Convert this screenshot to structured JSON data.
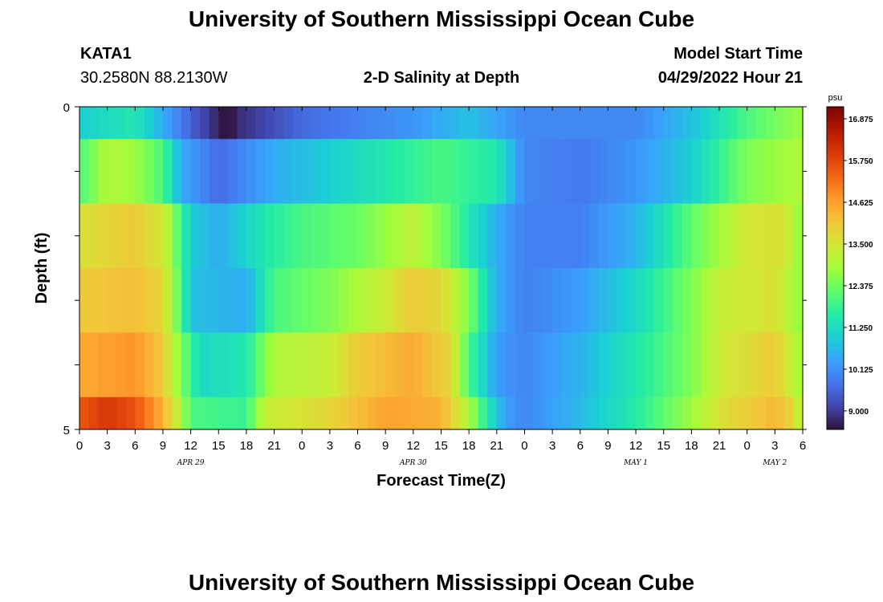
{
  "header": {
    "title": "University of Southern Mississippi Ocean Cube",
    "station": "KATA1",
    "coords": "30.2580N  88.2130W",
    "chart_title": "2-D Salinity at Depth",
    "model_label": "Model Start Time",
    "model_time": "04/29/2022 Hour 21"
  },
  "footer": {
    "title": "University of Southern Mississippi Ocean Cube"
  },
  "chart_data": {
    "type": "heatmap",
    "title": "2-D Salinity at Depth",
    "xlabel": "Forecast Time(Z)",
    "ylabel": "Depth (ft)",
    "x_hours": [
      0,
      3,
      6,
      9,
      12,
      15,
      18,
      21,
      24,
      27,
      30,
      33,
      36,
      39,
      42,
      45,
      48,
      51,
      54,
      57,
      60,
      63,
      66,
      69,
      72,
      75,
      78
    ],
    "x_tick_labels": [
      "0",
      "3",
      "6",
      "9",
      "12",
      "15",
      "18",
      "21",
      "0",
      "3",
      "6",
      "9",
      "12",
      "15",
      "18",
      "21",
      "0",
      "3",
      "6",
      "9",
      "12",
      "15",
      "18",
      "21",
      "0",
      "3",
      "6"
    ],
    "date_labels": [
      {
        "hour": 12,
        "text": "APR 29"
      },
      {
        "hour": 36,
        "text": "APR 30"
      },
      {
        "hour": 60,
        "text": "MAY 1"
      },
      {
        "hour": 75,
        "text": "MAY 2"
      }
    ],
    "y_tick_labels": [
      {
        "depth": 0,
        "text": "0"
      },
      {
        "depth": 5,
        "text": "5"
      }
    ],
    "ylim": [
      0,
      5
    ],
    "xlim": [
      0,
      78
    ],
    "colorbar": {
      "unit": "psu",
      "min": 8.5,
      "max": 17.2,
      "ticks": [
        "16.875",
        "15.750",
        "14.625",
        "13.500",
        "12.375",
        "11.250",
        "10.125",
        "9.000"
      ],
      "colors": [
        "#30123b",
        "#4145ab",
        "#4675ed",
        "#39a2fc",
        "#1bcfd4",
        "#24eca6",
        "#61fc6c",
        "#a4fc3b",
        "#d1e834",
        "#f3c63a",
        "#fe9b2d",
        "#f36315",
        "#d93806",
        "#b11901",
        "#7a0403"
      ]
    },
    "layers": [
      {
        "depth_range": [
          0,
          0.5
        ],
        "knots": [
          [
            0,
            11.0
          ],
          [
            6,
            11.5
          ],
          [
            12,
            9.5
          ],
          [
            15,
            8.7
          ],
          [
            16,
            8.4
          ],
          [
            17,
            8.8
          ],
          [
            24,
            9.6
          ],
          [
            36,
            10.2
          ],
          [
            42,
            10.8
          ],
          [
            48,
            10.0
          ],
          [
            60,
            10.0
          ],
          [
            66,
            10.8
          ],
          [
            72,
            12.0
          ],
          [
            78,
            12.8
          ]
        ]
      },
      {
        "depth_range": [
          0.5,
          1.5
        ],
        "knots": [
          [
            0,
            12.0
          ],
          [
            3,
            13.0
          ],
          [
            6,
            12.8
          ],
          [
            9,
            12.0
          ],
          [
            11,
            10.5
          ],
          [
            15,
            9.6
          ],
          [
            21,
            10.5
          ],
          [
            27,
            11.0
          ],
          [
            33,
            11.5
          ],
          [
            39,
            12.0
          ],
          [
            45,
            11.5
          ],
          [
            48,
            10.0
          ],
          [
            54,
            9.8
          ],
          [
            60,
            10.2
          ],
          [
            66,
            11.0
          ],
          [
            72,
            12.5
          ],
          [
            78,
            13.0
          ]
        ]
      },
      {
        "depth_range": [
          1.5,
          2.5
        ],
        "knots": [
          [
            0,
            13.6
          ],
          [
            6,
            14.0
          ],
          [
            9,
            13.5
          ],
          [
            12,
            11.0
          ],
          [
            15,
            10.5
          ],
          [
            20,
            11.5
          ],
          [
            24,
            12.0
          ],
          [
            30,
            12.3
          ],
          [
            36,
            13.2
          ],
          [
            39,
            12.5
          ],
          [
            42,
            11.5
          ],
          [
            45,
            10.5
          ],
          [
            48,
            9.9
          ],
          [
            54,
            9.9
          ],
          [
            60,
            10.6
          ],
          [
            66,
            12.2
          ],
          [
            72,
            13.5
          ],
          [
            76,
            13.6
          ],
          [
            78,
            12.5
          ]
        ]
      },
      {
        "depth_range": [
          2.5,
          3.5
        ],
        "knots": [
          [
            0,
            14.0
          ],
          [
            6,
            14.2
          ],
          [
            9,
            13.8
          ],
          [
            11,
            12.0
          ],
          [
            12,
            10.8
          ],
          [
            18,
            10.5
          ],
          [
            21,
            12.0
          ],
          [
            27,
            12.5
          ],
          [
            33,
            13.4
          ],
          [
            36,
            14.0
          ],
          [
            39,
            13.8
          ],
          [
            42,
            12.5
          ],
          [
            45,
            10.5
          ],
          [
            48,
            9.9
          ],
          [
            54,
            10.3
          ],
          [
            60,
            11.2
          ],
          [
            66,
            12.5
          ],
          [
            69,
            13.3
          ],
          [
            75,
            13.6
          ],
          [
            78,
            12.6
          ]
        ]
      },
      {
        "depth_range": [
          3.5,
          4.5
        ],
        "knots": [
          [
            0,
            14.5
          ],
          [
            6,
            14.8
          ],
          [
            9,
            14.0
          ],
          [
            11,
            12.5
          ],
          [
            13,
            11.2
          ],
          [
            18,
            11.5
          ],
          [
            21,
            13.0
          ],
          [
            27,
            13.3
          ],
          [
            30,
            14.0
          ],
          [
            36,
            14.5
          ],
          [
            40,
            13.8
          ],
          [
            42,
            12.0
          ],
          [
            45,
            10.3
          ],
          [
            48,
            10.0
          ],
          [
            54,
            10.6
          ],
          [
            60,
            11.5
          ],
          [
            66,
            12.5
          ],
          [
            69,
            13.4
          ],
          [
            75,
            14.0
          ],
          [
            78,
            12.8
          ]
        ]
      },
      {
        "depth_range": [
          4.5,
          5.0
        ],
        "knots": [
          [
            0,
            15.5
          ],
          [
            3,
            16.0
          ],
          [
            6,
            15.6
          ],
          [
            9,
            14.4
          ],
          [
            11,
            13.0
          ],
          [
            12,
            12.0
          ],
          [
            18,
            11.8
          ],
          [
            20,
            13.3
          ],
          [
            27,
            13.8
          ],
          [
            33,
            14.6
          ],
          [
            39,
            14.4
          ],
          [
            42,
            13.0
          ],
          [
            44,
            11.5
          ],
          [
            46,
            10.3
          ],
          [
            48,
            10.0
          ],
          [
            54,
            10.7
          ],
          [
            60,
            11.6
          ],
          [
            66,
            12.8
          ],
          [
            69,
            13.6
          ],
          [
            75,
            14.3
          ],
          [
            77,
            13.8
          ],
          [
            78,
            12.8
          ]
        ]
      }
    ]
  }
}
